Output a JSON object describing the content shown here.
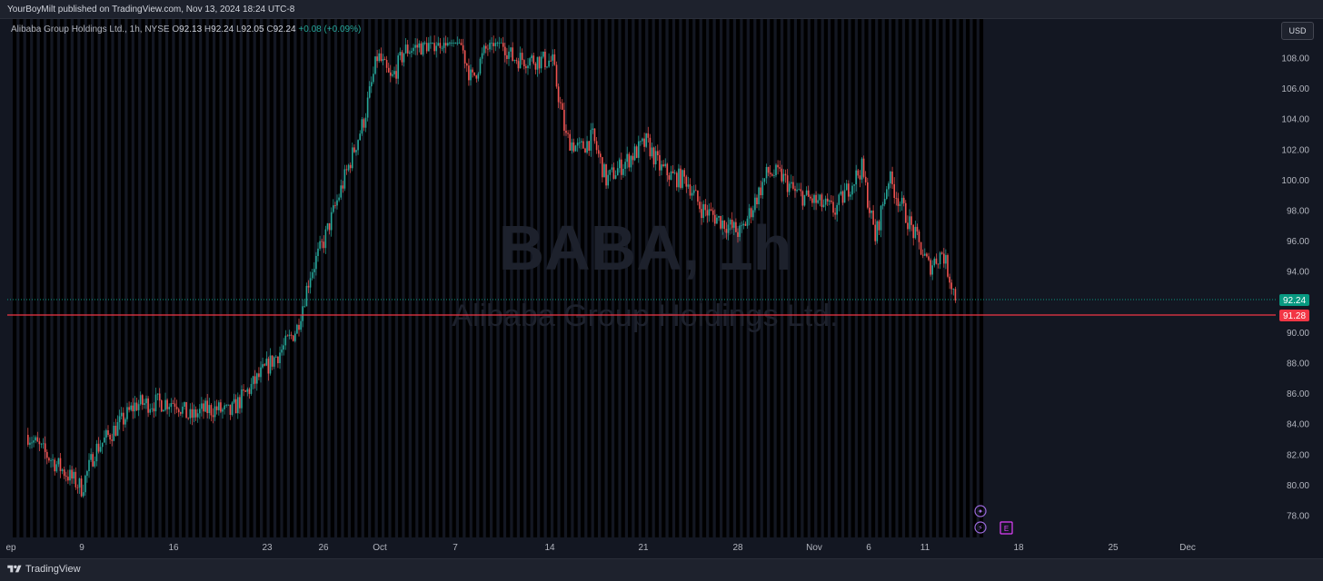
{
  "header": {
    "publish_text": "YourBoyMilt published on TradingView.com, Nov 13, 2024 18:24 UTC-8"
  },
  "legend": {
    "symbol": "Alibaba Group Holdings Ltd., 1h, NYSE",
    "o_label": "O",
    "o_value": "92.13",
    "h_label": "H",
    "h_value": "92.24",
    "l_label": "L",
    "l_value": "92.05",
    "c_label": "C",
    "c_value": "92.24",
    "change": "+0.08 (+0.09%)"
  },
  "currency_button": "USD",
  "watermark": {
    "ticker": "BABA, 1h",
    "name": "Alibaba Group Holdings Ltd."
  },
  "price_axis": {
    "ticks": [
      "108.00",
      "106.00",
      "104.00",
      "102.00",
      "100.00",
      "98.00",
      "96.00",
      "94.00",
      "90.00",
      "88.00",
      "86.00",
      "84.00",
      "82.00",
      "80.00",
      "78.00"
    ],
    "last_price_label": "92.24",
    "horizontal_line_label": "91.28"
  },
  "time_axis": {
    "ticks": [
      "ep",
      "9",
      "16",
      "23",
      "26",
      "Oct",
      "7",
      "14",
      "21",
      "28",
      "Nov",
      "6",
      "11",
      "18",
      "25",
      "Dec"
    ]
  },
  "footer": {
    "brand": "TradingView"
  },
  "colors": {
    "background": "#131722",
    "up": "#26a69a",
    "down": "#ef5350",
    "horizontal_line": "#f23645",
    "last_price": "#089981",
    "event_purple": "#9c6ade",
    "earnings": "#e040fb"
  },
  "events": {
    "earnings_label": "E"
  },
  "chart_data": {
    "type": "candlestick",
    "interval": "1h",
    "ylim": [
      77,
      109
    ],
    "last": 92.24,
    "horizontal_line": 91.28,
    "path": [
      [
        "2024-09-05",
        83.3
      ],
      [
        "2024-09-06",
        82.3
      ],
      [
        "2024-09-09",
        79.8
      ],
      [
        "2024-09-10",
        82.3
      ],
      [
        "2024-09-12",
        84.2
      ],
      [
        "2024-09-13",
        85.3
      ],
      [
        "2024-09-16",
        85.5
      ],
      [
        "2024-09-17",
        84.4
      ],
      [
        "2024-09-18",
        84.9
      ],
      [
        "2024-09-19",
        85.0
      ],
      [
        "2024-09-20",
        84.7
      ],
      [
        "2024-09-23",
        88.0
      ],
      [
        "2024-09-24",
        89.0
      ],
      [
        "2024-09-25",
        90.3
      ],
      [
        "2024-09-26",
        93.9
      ],
      [
        "2024-09-27",
        96.0
      ],
      [
        "2024-09-30",
        104.0
      ],
      [
        "2024-10-01",
        108.2
      ],
      [
        "2024-10-02",
        106.5
      ],
      [
        "2024-10-03",
        108.5
      ],
      [
        "2024-10-07",
        109.5
      ],
      [
        "2024-10-08",
        106.5
      ],
      [
        "2024-10-09",
        108.5
      ],
      [
        "2024-10-10",
        109.5
      ],
      [
        "2024-10-11",
        108.0
      ],
      [
        "2024-10-14",
        107.8
      ],
      [
        "2024-10-15",
        102.8
      ],
      [
        "2024-10-16",
        102.0
      ],
      [
        "2024-10-17",
        102.8
      ],
      [
        "2024-10-18",
        100.0
      ],
      [
        "2024-10-21",
        102.5
      ],
      [
        "2024-10-22",
        100.8
      ],
      [
        "2024-10-23",
        100.2
      ],
      [
        "2024-10-24",
        100.0
      ],
      [
        "2024-10-25",
        98.2
      ],
      [
        "2024-10-28",
        96.5
      ],
      [
        "2024-10-29",
        98.5
      ],
      [
        "2024-10-30",
        100.5
      ],
      [
        "2024-10-31",
        100.3
      ],
      [
        "2024-11-01",
        99.2
      ],
      [
        "2024-11-04",
        98.0
      ],
      [
        "2024-11-05",
        99.5
      ],
      [
        "2024-11-06",
        100.8
      ],
      [
        "2024-11-07",
        96.2
      ],
      [
        "2024-11-08",
        100.2
      ],
      [
        "2024-11-11",
        94.3
      ],
      [
        "2024-11-12",
        95.3
      ],
      [
        "2024-11-13",
        92.24
      ]
    ]
  }
}
